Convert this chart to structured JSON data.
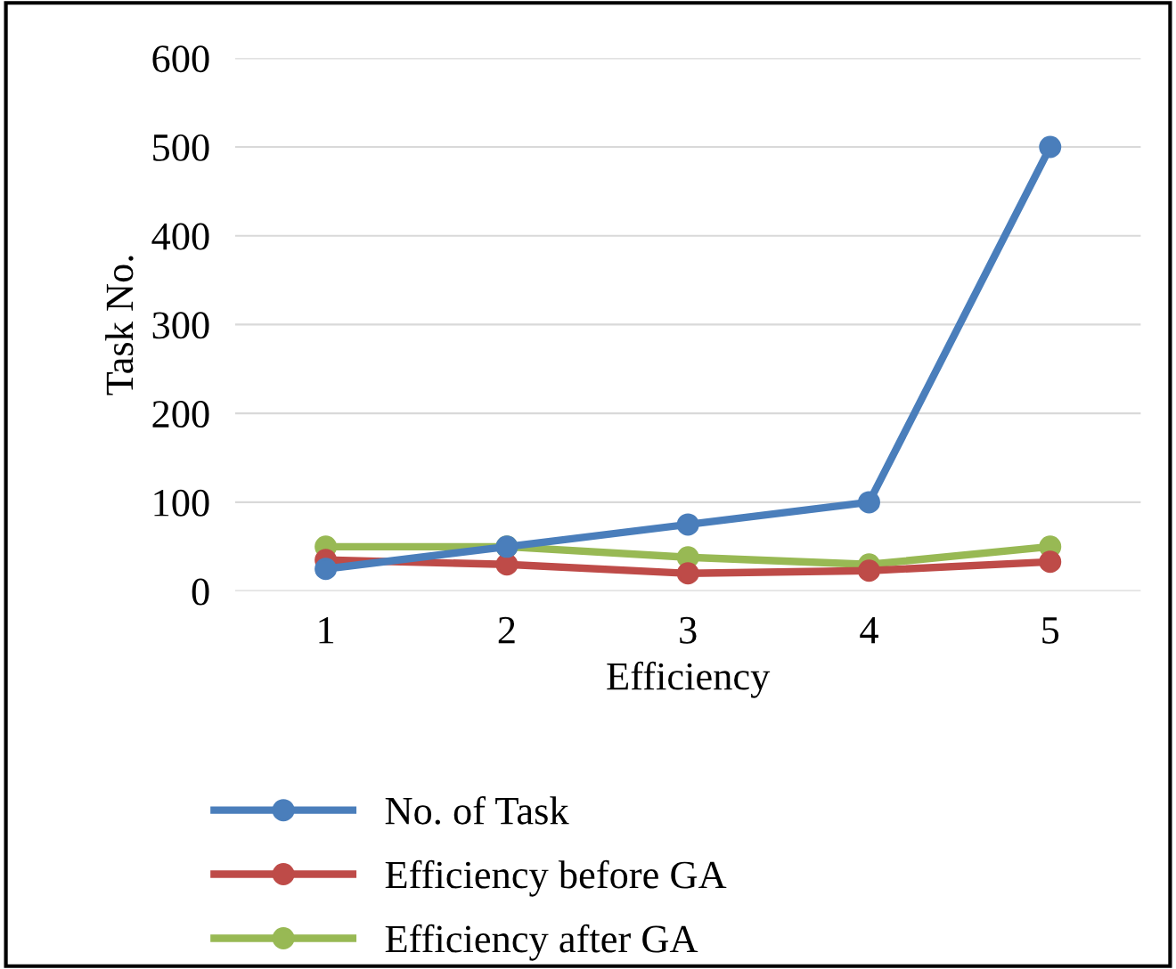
{
  "chart_data": {
    "type": "line",
    "xlabel": "Efficiency",
    "ylabel": "Task No.",
    "categories": [
      "1",
      "2",
      "3",
      "4",
      "5"
    ],
    "series": [
      {
        "name": "No. of Task",
        "color": "#4a7ebb",
        "values": [
          25,
          50,
          75,
          100,
          500
        ]
      },
      {
        "name": "Efficiency before GA",
        "color": "#be4b48",
        "values": [
          35,
          30,
          20,
          23,
          33
        ]
      },
      {
        "name": "Efficiency after GA",
        "color": "#98b954",
        "values": [
          50,
          50,
          38,
          30,
          50
        ]
      }
    ],
    "ylim": [
      0,
      600
    ],
    "yticks": [
      0,
      100,
      200,
      300,
      400,
      500,
      600
    ],
    "grid": "y",
    "legend": "bottom",
    "marker": "circle",
    "line_style": "solid"
  }
}
